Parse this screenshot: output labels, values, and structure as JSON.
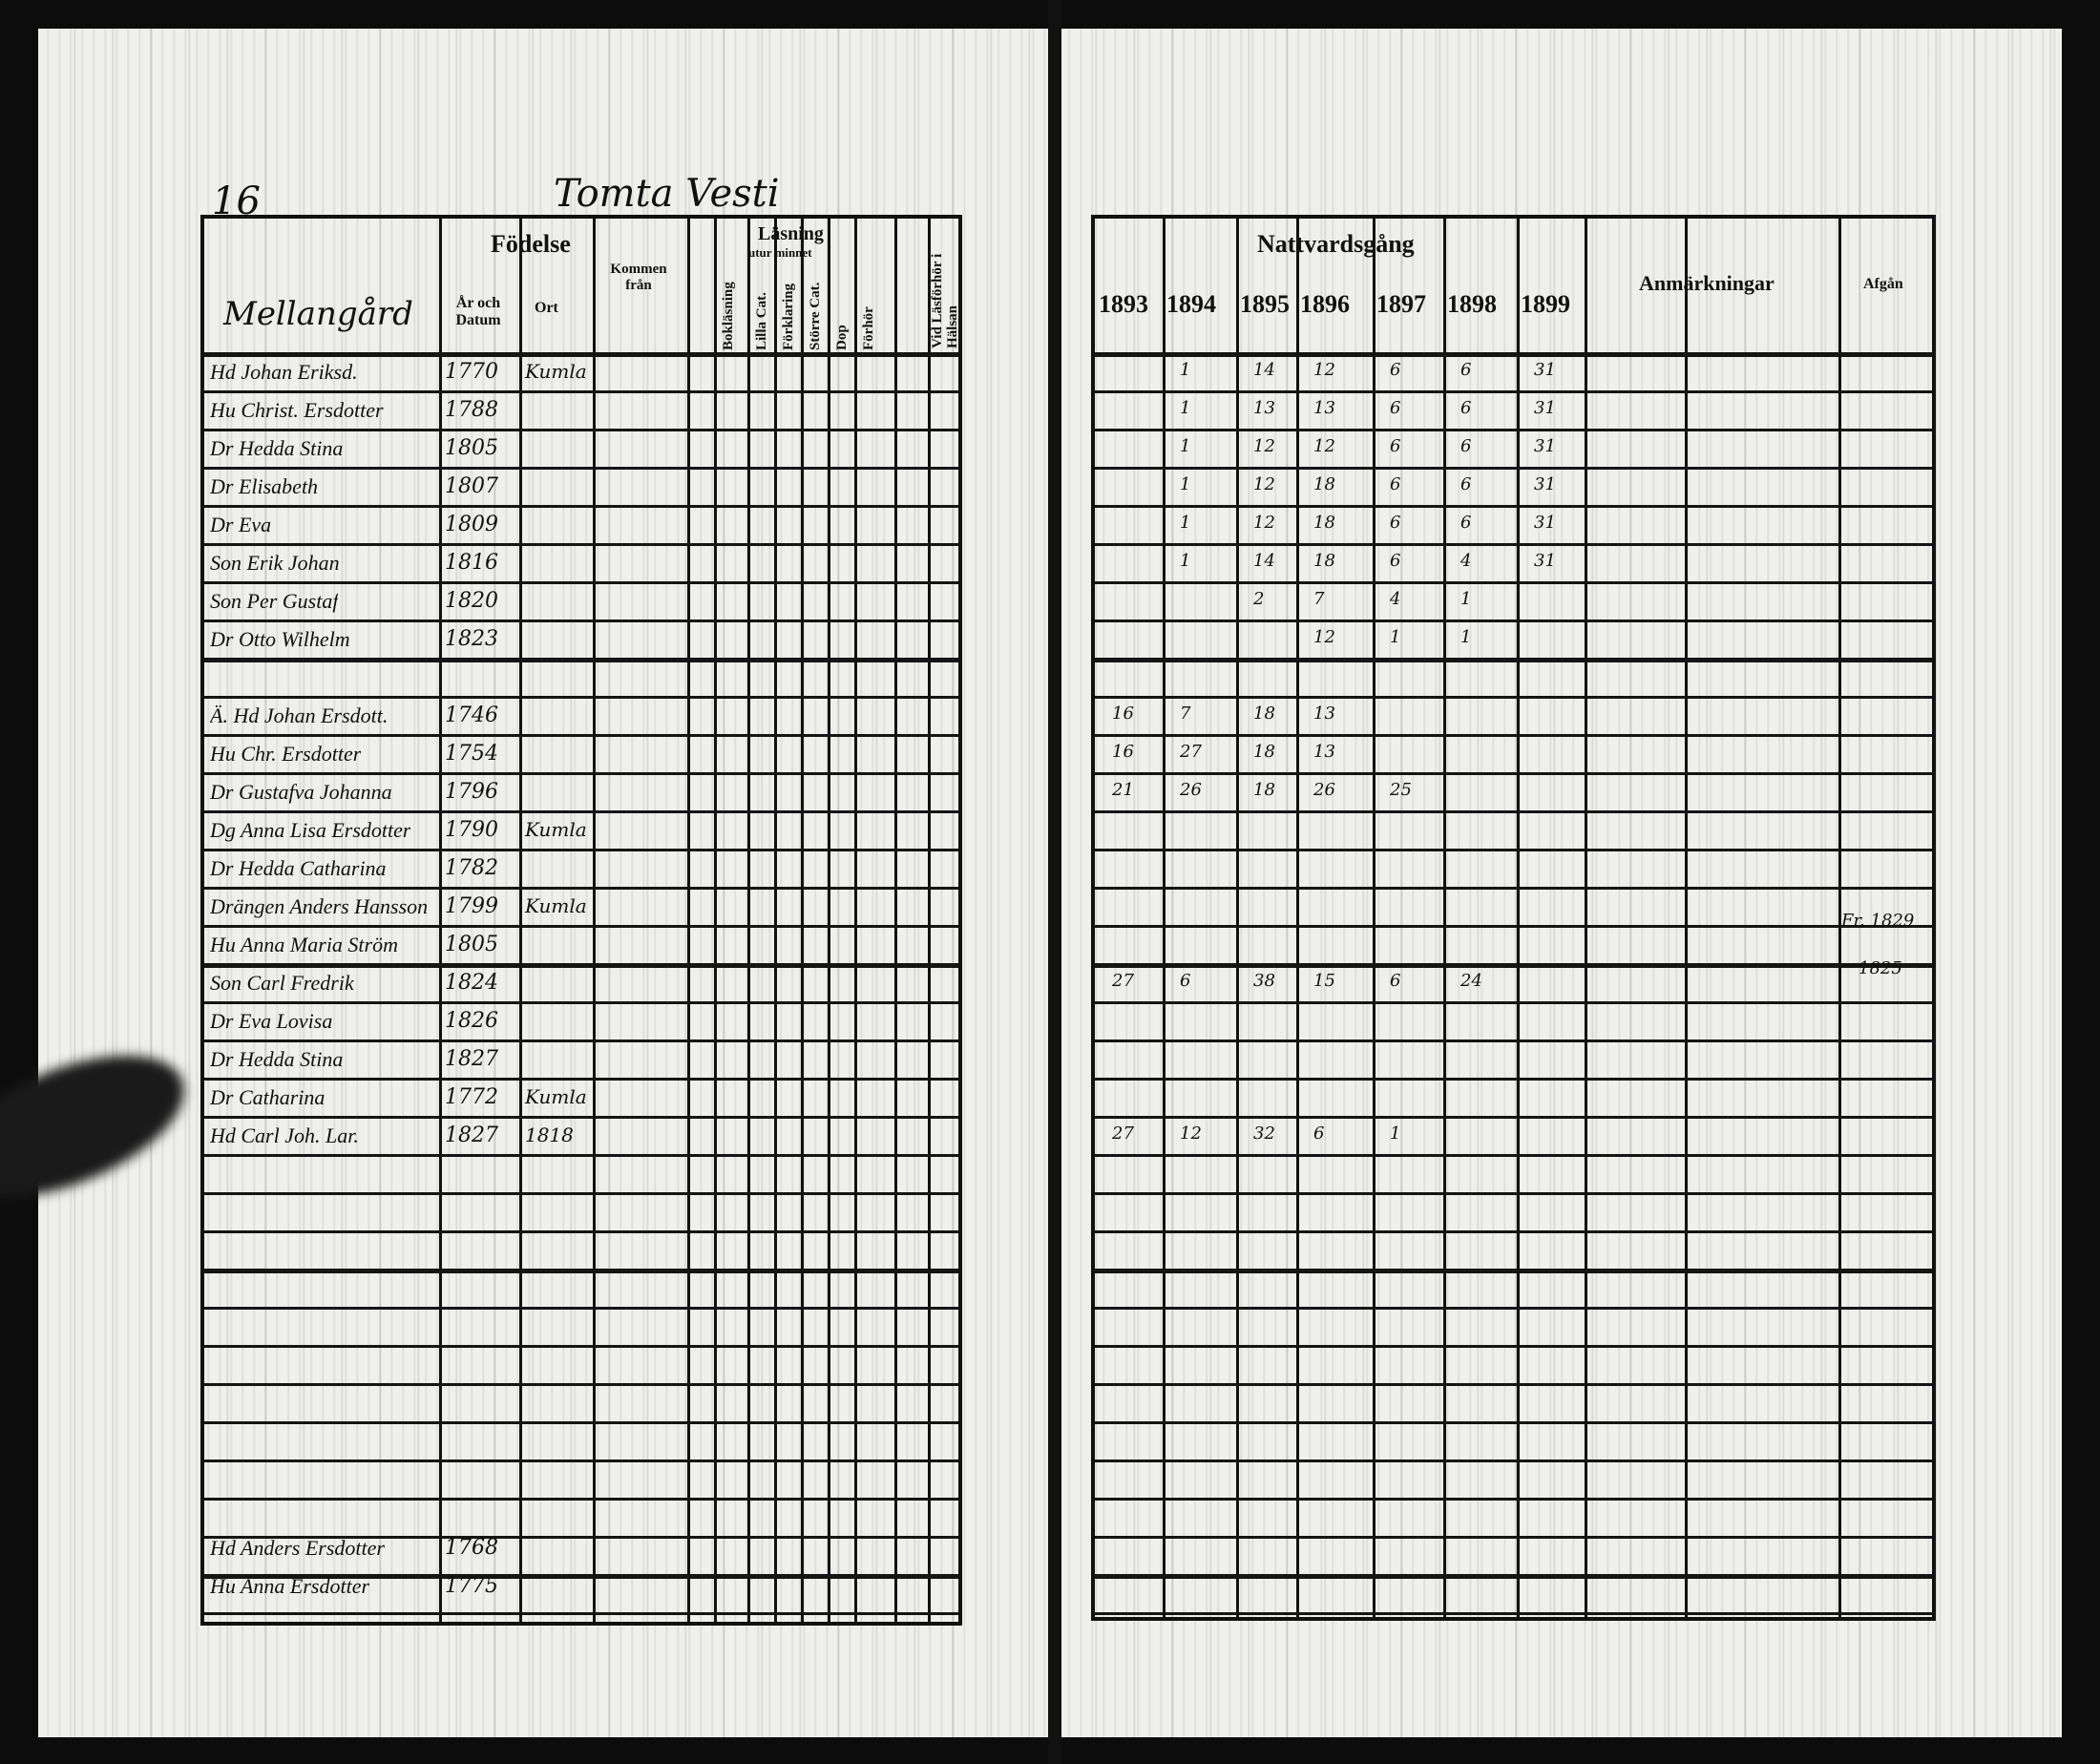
{
  "page_number": "16",
  "farm_heading": "Tomta Vesti",
  "left_header": {
    "place_label": "Mellangård",
    "birth_title": "Födelse",
    "birth_year_date": "År och Datum",
    "birth_place": "Ort",
    "came_from": "Kommen från",
    "reading_title": "Läsning",
    "reading_sub": "utur minnet",
    "reading_cols": [
      "Bokläsning",
      "Lilla Cat.",
      "Förklaring",
      "Större Cat.",
      "Dop",
      "Förhör"
    ],
    "vaccination": "Vid Läsförhör i Hälsan"
  },
  "right_header": {
    "communion_title": "Nattvardsgång",
    "years": [
      "1893",
      "1894",
      "1895",
      "1896",
      "1897",
      "1898",
      "1899"
    ],
    "remarks": "Anmärkningar",
    "departed": "Afgån"
  },
  "entries": [
    {
      "name": "Hd Johan Eriksd.",
      "born": "1770",
      "place": "Kumla",
      "marks": [
        "",
        "1",
        "14",
        "12",
        "6",
        "6",
        "31"
      ]
    },
    {
      "name": "Hu Christ. Ersdotter",
      "born": "1788",
      "place": "",
      "marks": [
        "",
        "1",
        "13",
        "13",
        "6",
        "6",
        "31"
      ]
    },
    {
      "name": "Dr Hedda Stina",
      "born": "1805",
      "place": "",
      "marks": [
        "",
        "1",
        "12",
        "12",
        "6",
        "6",
        "31"
      ]
    },
    {
      "name": "Dr Elisabeth",
      "born": "1807",
      "place": "",
      "marks": [
        "",
        "1",
        "12",
        "18",
        "6",
        "6",
        "31"
      ]
    },
    {
      "name": "Dr Eva",
      "born": "1809",
      "place": "",
      "marks": [
        "",
        "1",
        "12",
        "18",
        "6",
        "6",
        "31"
      ]
    },
    {
      "name": "Son Erik Johan",
      "born": "1816",
      "place": "",
      "marks": [
        "",
        "1",
        "14",
        "18",
        "6",
        "4",
        "31"
      ]
    },
    {
      "name": "Son Per Gustaf",
      "born": "1820",
      "place": "",
      "marks": [
        "",
        "",
        "2",
        "7",
        "4",
        "1",
        ""
      ]
    },
    {
      "name": "Dr Otto Wilhelm",
      "born": "1823",
      "place": "",
      "marks": [
        "",
        "",
        "",
        "12",
        "1",
        "1",
        ""
      ]
    },
    {
      "name": "",
      "born": "",
      "place": "",
      "marks": [
        "",
        "",
        "",
        "",
        "",
        "",
        ""
      ]
    },
    {
      "name": "Ä. Hd Johan Ersdott.",
      "born": "1746",
      "place": "",
      "marks": [
        "16",
        "7",
        "18",
        "13",
        "",
        "",
        ""
      ]
    },
    {
      "name": "Hu Chr. Ersdotter",
      "born": "1754",
      "place": "",
      "marks": [
        "16",
        "27",
        "18",
        "13",
        "",
        "",
        ""
      ]
    },
    {
      "name": "Dr Gustafva Johanna",
      "born": "1796",
      "place": "",
      "marks": [
        "21",
        "26",
        "18",
        "26",
        "25",
        "",
        ""
      ]
    },
    {
      "name": "Dg Anna Lisa Ersdotter",
      "born": "1790",
      "place": "Kumla",
      "marks": [
        "",
        "",
        "",
        "",
        "",
        "",
        ""
      ]
    },
    {
      "name": "Dr Hedda Catharina",
      "born": "1782",
      "place": "",
      "marks": [
        "",
        "",
        "",
        "",
        "",
        "",
        ""
      ]
    },
    {
      "name": "Drängen Anders Hansson",
      "born": "1799",
      "place": "Kumla",
      "marks": [
        "",
        "",
        "",
        "",
        "",
        "",
        ""
      ]
    },
    {
      "name": "Hu Anna Maria Ström",
      "born": "1805",
      "place": "",
      "marks": [
        "",
        "",
        "",
        "",
        "",
        "",
        ""
      ]
    },
    {
      "name": "Son Carl Fredrik",
      "born": "1824",
      "place": "",
      "marks": [
        "27",
        "6",
        "38",
        "15",
        "6",
        "24",
        ""
      ]
    },
    {
      "name": "Dr Eva Lovisa",
      "born": "1826",
      "place": "",
      "marks": [
        "",
        "",
        "",
        "",
        "",
        "",
        ""
      ]
    },
    {
      "name": "Dr Hedda Stina",
      "born": "1827",
      "place": "",
      "marks": [
        "",
        "",
        "",
        "",
        "",
        "",
        ""
      ]
    },
    {
      "name": "Dr Catharina",
      "born": "1772",
      "place": "Kumla",
      "marks": [
        "",
        "",
        "",
        "",
        "",
        "",
        ""
      ]
    },
    {
      "name": "Hd Carl Joh. Lar.",
      "born": "1827",
      "place": "1818",
      "marks": [
        "27",
        "12",
        "32",
        "6",
        "1",
        "",
        ""
      ]
    }
  ],
  "bottom_entries": [
    {
      "name": "Hd Anders Ersdotter",
      "born": "1768"
    },
    {
      "name": "Hu Anna Ersdotter",
      "born": "1775"
    }
  ],
  "remarks_notes": [
    "Fr. 1829",
    "1825"
  ]
}
